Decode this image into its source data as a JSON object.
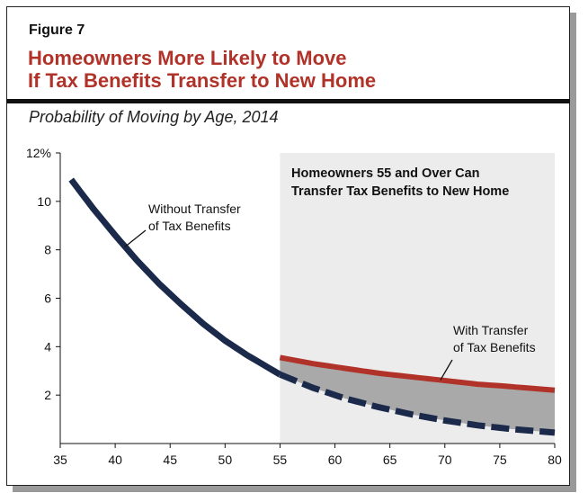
{
  "figure": {
    "label": "Figure 7",
    "title_line1": "Homeowners More Likely to Move",
    "title_line2": "If Tax Benefits Transfer to New Home",
    "subtitle": "Probability of Moving by Age, 2014"
  },
  "colors": {
    "title": "#b03228",
    "without_transfer": "#1b2a4a",
    "with_transfer": "#b03228",
    "shaded_region": "#ececec",
    "gap_fill": "#a9a9a9"
  },
  "chart_data": {
    "type": "line",
    "title": "Probability of Moving by Age, 2014",
    "xlabel": "",
    "ylabel": "",
    "xlim": [
      35,
      80
    ],
    "ylim": [
      0,
      12
    ],
    "x_ticks": [
      35,
      40,
      45,
      50,
      55,
      60,
      65,
      70,
      75,
      80
    ],
    "y_ticks": [
      2,
      4,
      6,
      8,
      10,
      12
    ],
    "y_tick_labels": [
      "2",
      "4",
      "6",
      "8",
      "10",
      "12%"
    ],
    "x_tick_labels": [
      "35",
      "40",
      "45",
      "50",
      "55",
      "60",
      "65",
      "70",
      "75",
      "80"
    ],
    "series": [
      {
        "name": "Without Transfer of Tax Benefits",
        "label_line1": "Without Transfer",
        "label_line2": "of Tax Benefits",
        "style": "solid until 55, dashed after",
        "x": [
          36,
          38,
          40,
          42,
          44,
          46,
          48,
          50,
          52,
          55,
          58,
          61,
          64,
          67,
          70,
          73,
          76,
          80
        ],
        "y": [
          10.9,
          9.7,
          8.6,
          7.55,
          6.6,
          5.75,
          4.95,
          4.25,
          3.65,
          2.85,
          2.3,
          1.85,
          1.5,
          1.2,
          0.95,
          0.75,
          0.6,
          0.45
        ]
      },
      {
        "name": "With Transfer of Tax Benefits",
        "label_line1": "With Transfer",
        "label_line2": "of Tax Benefits",
        "x": [
          55,
          58,
          61,
          64,
          67,
          70,
          73,
          76,
          80
        ],
        "y": [
          3.55,
          3.3,
          3.1,
          2.9,
          2.75,
          2.6,
          2.45,
          2.35,
          2.2
        ]
      }
    ],
    "shaded_region": {
      "x_start": 55,
      "x_end": 80,
      "label_line1": "Homeowners 55 and Over Can",
      "label_line2": "Transfer Tax Benefits to New Home"
    }
  }
}
